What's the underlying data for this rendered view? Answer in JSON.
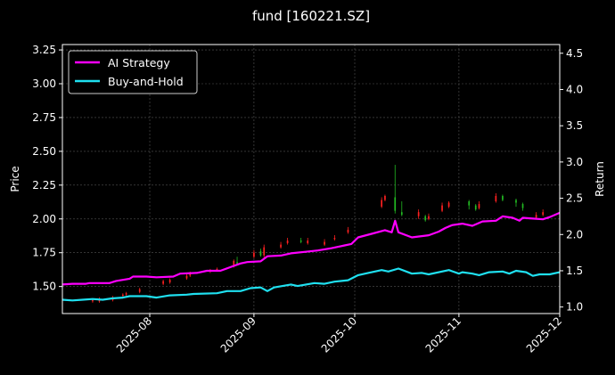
{
  "chart_data": {
    "type": "line",
    "title": "fund [160221.SZ]",
    "xlabel": "",
    "ylabel_left": "Price",
    "ylabel_right": "Return",
    "x_range": [
      "2025-07-06",
      "2025-12-01"
    ],
    "x_ticks": [
      "2025-08",
      "2025-09",
      "2025-10",
      "2025-11",
      "2025-12"
    ],
    "x_tick_dates": [
      "2025-08-01",
      "2025-09-01",
      "2025-10-01",
      "2025-11-01",
      "2025-12-01"
    ],
    "y_left": {
      "range": [
        1.3,
        3.29
      ],
      "ticks": [
        "1.50",
        "1.75",
        "2.00",
        "2.25",
        "2.50",
        "2.75",
        "3.00",
        "3.25"
      ]
    },
    "y_right": {
      "range": [
        0.91,
        4.62
      ],
      "ticks": [
        "1.0",
        "1.5",
        "2.0",
        "2.5",
        "3.0",
        "3.5",
        "4.0",
        "4.5"
      ]
    },
    "grid": true,
    "legend_position": "top-left",
    "colors": {
      "ai": "#ff00ff",
      "bh": "#1fe0f0",
      "up": "#ff2020",
      "down": "#22bb22",
      "grid": "#555555"
    },
    "series": [
      {
        "name": "AI Strategy",
        "axis": "right",
        "points": [
          [
            "2025-07-06",
            1.31
          ],
          [
            "2025-07-09",
            1.32
          ],
          [
            "2025-07-13",
            1.32
          ],
          [
            "2025-07-14",
            1.33
          ],
          [
            "2025-07-20",
            1.33
          ],
          [
            "2025-07-22",
            1.36
          ],
          [
            "2025-07-26",
            1.39
          ],
          [
            "2025-07-27",
            1.42
          ],
          [
            "2025-07-31",
            1.42
          ],
          [
            "2025-08-03",
            1.41
          ],
          [
            "2025-08-08",
            1.42
          ],
          [
            "2025-08-10",
            1.46
          ],
          [
            "2025-08-15",
            1.47
          ],
          [
            "2025-08-18",
            1.5
          ],
          [
            "2025-08-22",
            1.5
          ],
          [
            "2025-08-25",
            1.55
          ],
          [
            "2025-08-28",
            1.6
          ],
          [
            "2025-08-30",
            1.62
          ],
          [
            "2025-09-03",
            1.63
          ],
          [
            "2025-09-05",
            1.7
          ],
          [
            "2025-09-09",
            1.71
          ],
          [
            "2025-09-12",
            1.74
          ],
          [
            "2025-09-16",
            1.76
          ],
          [
            "2025-09-20",
            1.78
          ],
          [
            "2025-09-24",
            1.81
          ],
          [
            "2025-09-28",
            1.85
          ],
          [
            "2025-09-30",
            1.87
          ],
          [
            "2025-10-02",
            1.96
          ],
          [
            "2025-10-06",
            2.01
          ],
          [
            "2025-10-10",
            2.06
          ],
          [
            "2025-10-12",
            2.03
          ],
          [
            "2025-10-13",
            2.19
          ],
          [
            "2025-10-14",
            2.03
          ],
          [
            "2025-10-18",
            1.96
          ],
          [
            "2025-10-23",
            1.99
          ],
          [
            "2025-10-26",
            2.04
          ],
          [
            "2025-10-28",
            2.09
          ],
          [
            "2025-10-30",
            2.13
          ],
          [
            "2025-11-02",
            2.15
          ],
          [
            "2025-11-05",
            2.12
          ],
          [
            "2025-11-08",
            2.18
          ],
          [
            "2025-11-12",
            2.19
          ],
          [
            "2025-11-14",
            2.25
          ],
          [
            "2025-11-17",
            2.23
          ],
          [
            "2025-11-19",
            2.19
          ],
          [
            "2025-11-20",
            2.23
          ],
          [
            "2025-11-23",
            2.22
          ],
          [
            "2025-11-26",
            2.21
          ],
          [
            "2025-11-28",
            2.24
          ],
          [
            "2025-12-01",
            2.3
          ]
        ]
      },
      {
        "name": "Buy-and-Hold",
        "axis": "right",
        "points": [
          [
            "2025-07-06",
            1.1
          ],
          [
            "2025-07-09",
            1.09
          ],
          [
            "2025-07-12",
            1.1
          ],
          [
            "2025-07-15",
            1.11
          ],
          [
            "2025-07-18",
            1.1
          ],
          [
            "2025-07-21",
            1.12
          ],
          [
            "2025-07-24",
            1.13
          ],
          [
            "2025-07-26",
            1.15
          ],
          [
            "2025-07-31",
            1.15
          ],
          [
            "2025-08-03",
            1.13
          ],
          [
            "2025-08-07",
            1.16
          ],
          [
            "2025-08-12",
            1.17
          ],
          [
            "2025-08-14",
            1.18
          ],
          [
            "2025-08-21",
            1.19
          ],
          [
            "2025-08-24",
            1.22
          ],
          [
            "2025-08-28",
            1.22
          ],
          [
            "2025-08-31",
            1.26
          ],
          [
            "2025-09-03",
            1.27
          ],
          [
            "2025-09-05",
            1.22
          ],
          [
            "2025-09-07",
            1.27
          ],
          [
            "2025-09-12",
            1.31
          ],
          [
            "2025-09-14",
            1.29
          ],
          [
            "2025-09-19",
            1.33
          ],
          [
            "2025-09-22",
            1.32
          ],
          [
            "2025-09-25",
            1.35
          ],
          [
            "2025-09-29",
            1.37
          ],
          [
            "2025-10-02",
            1.44
          ],
          [
            "2025-10-05",
            1.47
          ],
          [
            "2025-10-09",
            1.51
          ],
          [
            "2025-10-11",
            1.49
          ],
          [
            "2025-10-14",
            1.53
          ],
          [
            "2025-10-18",
            1.46
          ],
          [
            "2025-10-21",
            1.47
          ],
          [
            "2025-10-23",
            1.45
          ],
          [
            "2025-10-29",
            1.51
          ],
          [
            "2025-11-01",
            1.46
          ],
          [
            "2025-11-02",
            1.48
          ],
          [
            "2025-11-05",
            1.46
          ],
          [
            "2025-11-07",
            1.44
          ],
          [
            "2025-11-10",
            1.48
          ],
          [
            "2025-11-14",
            1.49
          ],
          [
            "2025-11-16",
            1.46
          ],
          [
            "2025-11-18",
            1.5
          ],
          [
            "2025-11-21",
            1.48
          ],
          [
            "2025-11-23",
            1.43
          ],
          [
            "2025-11-25",
            1.45
          ],
          [
            "2025-11-28",
            1.45
          ],
          [
            "2025-12-01",
            1.48
          ]
        ]
      }
    ],
    "candles": {
      "axis": "left",
      "items": [
        [
          "2025-07-15",
          1.39,
          1.4,
          1.41,
          1.38
        ],
        [
          "2025-07-17",
          1.39,
          1.4,
          1.42,
          1.38
        ],
        [
          "2025-07-21",
          1.4,
          1.42,
          1.43,
          1.39
        ],
        [
          "2025-07-24",
          1.43,
          1.44,
          1.45,
          1.42
        ],
        [
          "2025-07-25",
          1.44,
          1.45,
          1.46,
          1.43
        ],
        [
          "2025-07-29",
          1.46,
          1.48,
          1.49,
          1.45
        ],
        [
          "2025-08-05",
          1.52,
          1.54,
          1.55,
          1.51
        ],
        [
          "2025-08-07",
          1.53,
          1.55,
          1.56,
          1.52
        ],
        [
          "2025-08-12",
          1.56,
          1.58,
          1.6,
          1.55
        ],
        [
          "2025-08-13",
          1.58,
          1.6,
          1.61,
          1.57
        ],
        [
          "2025-08-19",
          1.61,
          1.62,
          1.63,
          1.6
        ],
        [
          "2025-08-21",
          1.62,
          1.63,
          1.64,
          1.61
        ],
        [
          "2025-08-26",
          1.65,
          1.69,
          1.7,
          1.64
        ],
        [
          "2025-08-27",
          1.68,
          1.67,
          1.72,
          1.66
        ],
        [
          "2025-09-01",
          1.72,
          1.75,
          1.77,
          1.71
        ],
        [
          "2025-09-03",
          1.76,
          1.73,
          1.78,
          1.72
        ],
        [
          "2025-09-04",
          1.73,
          1.79,
          1.81,
          1.71
        ],
        [
          "2025-09-09",
          1.79,
          1.81,
          1.83,
          1.78
        ],
        [
          "2025-09-11",
          1.82,
          1.84,
          1.86,
          1.81
        ],
        [
          "2025-09-15",
          1.84,
          1.83,
          1.86,
          1.82
        ],
        [
          "2025-09-17",
          1.82,
          1.84,
          1.86,
          1.81
        ],
        [
          "2025-09-22",
          1.81,
          1.83,
          1.85,
          1.8
        ],
        [
          "2025-09-25",
          1.85,
          1.86,
          1.88,
          1.84
        ],
        [
          "2025-09-29",
          1.9,
          1.92,
          1.94,
          1.89
        ],
        [
          "2025-10-09",
          2.09,
          2.14,
          2.16,
          2.08
        ],
        [
          "2025-10-10",
          2.14,
          2.17,
          2.18,
          2.13
        ],
        [
          "2025-10-13",
          2.16,
          2.06,
          2.4,
          2.04
        ],
        [
          "2025-10-15",
          2.05,
          2.03,
          2.13,
          2.02
        ],
        [
          "2025-10-20",
          2.02,
          2.05,
          2.07,
          2.0
        ],
        [
          "2025-10-22",
          2.02,
          1.99,
          2.03,
          1.98
        ],
        [
          "2025-10-23",
          2.0,
          2.02,
          2.04,
          1.99
        ],
        [
          "2025-10-27",
          2.06,
          2.1,
          2.12,
          2.05
        ],
        [
          "2025-10-29",
          2.09,
          2.12,
          2.13,
          2.08
        ],
        [
          "2025-11-04",
          2.13,
          2.1,
          2.14,
          2.07
        ],
        [
          "2025-11-06",
          2.1,
          2.07,
          2.11,
          2.06
        ],
        [
          "2025-11-07",
          2.08,
          2.11,
          2.13,
          2.07
        ],
        [
          "2025-11-12",
          2.13,
          2.17,
          2.19,
          2.12
        ],
        [
          "2025-11-14",
          2.17,
          2.14,
          2.18,
          2.13
        ],
        [
          "2025-11-18",
          2.14,
          2.12,
          2.15,
          2.09
        ],
        [
          "2025-11-20",
          2.11,
          2.08,
          2.12,
          2.06
        ],
        [
          "2025-11-24",
          2.01,
          2.03,
          2.05,
          2.0
        ],
        [
          "2025-11-26",
          2.03,
          2.05,
          2.07,
          2.02
        ]
      ]
    }
  }
}
